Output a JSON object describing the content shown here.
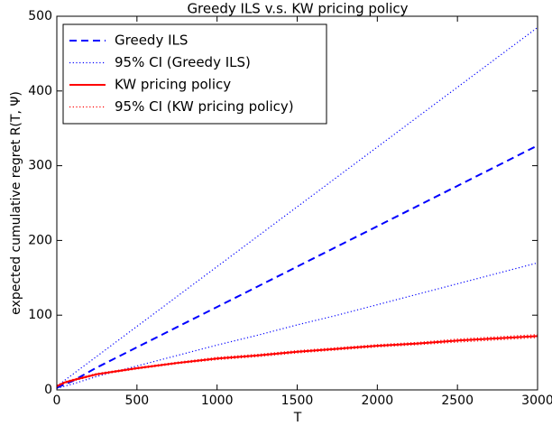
{
  "chart_data": {
    "type": "line",
    "title": "Greedy ILS v.s. KW pricing policy",
    "xlabel": "T",
    "ylabel": "expected cumulative regret R(T, Ψ)",
    "x": [
      0,
      50,
      100,
      250,
      500,
      750,
      1000,
      1250,
      1500,
      1750,
      2000,
      2250,
      2500,
      2750,
      3000
    ],
    "xlim": [
      0,
      3000
    ],
    "xticks": [
      0,
      500,
      1000,
      1500,
      2000,
      2500,
      3000
    ],
    "ylim": [
      0,
      500
    ],
    "yticks": [
      0,
      100,
      200,
      300,
      400,
      500
    ],
    "legend": "upper left",
    "series": [
      {
        "name": "Greedy ILS",
        "color": "#0000ff",
        "style": "dashed",
        "values": [
          3,
          7.5,
          12,
          30,
          57,
          84,
          111,
          138,
          165,
          192,
          219,
          246,
          273,
          300,
          327
        ]
      },
      {
        "name": "95% CI (Greedy ILS)",
        "color": "#0000ff",
        "style": "dotted",
        "lower": [
          2,
          5,
          8,
          18,
          32,
          46,
          60,
          73,
          87,
          100,
          114,
          128,
          142,
          156,
          170
        ],
        "upper": [
          5,
          13,
          21,
          45,
          85,
          125,
          165,
          205,
          245,
          285,
          325,
          365,
          405,
          445,
          485
        ]
      },
      {
        "name": "KW pricing policy",
        "color": "#ff0000",
        "style": "solid",
        "values": [
          5,
          10,
          13,
          21,
          29,
          36,
          42,
          46,
          51,
          55,
          59,
          62,
          66,
          69,
          72
        ]
      },
      {
        "name": "95% CI (KW pricing policy)",
        "color": "#ff0000",
        "style": "dotted",
        "lower": [
          4,
          9,
          12,
          20,
          28,
          35,
          40.5,
          44.5,
          49.5,
          53.5,
          57.5,
          60.5,
          64,
          67,
          70
        ],
        "upper": [
          6,
          11,
          14,
          22,
          30,
          37,
          43.5,
          47.5,
          52.5,
          56.5,
          60.5,
          63.5,
          68,
          71,
          74
        ]
      }
    ]
  }
}
